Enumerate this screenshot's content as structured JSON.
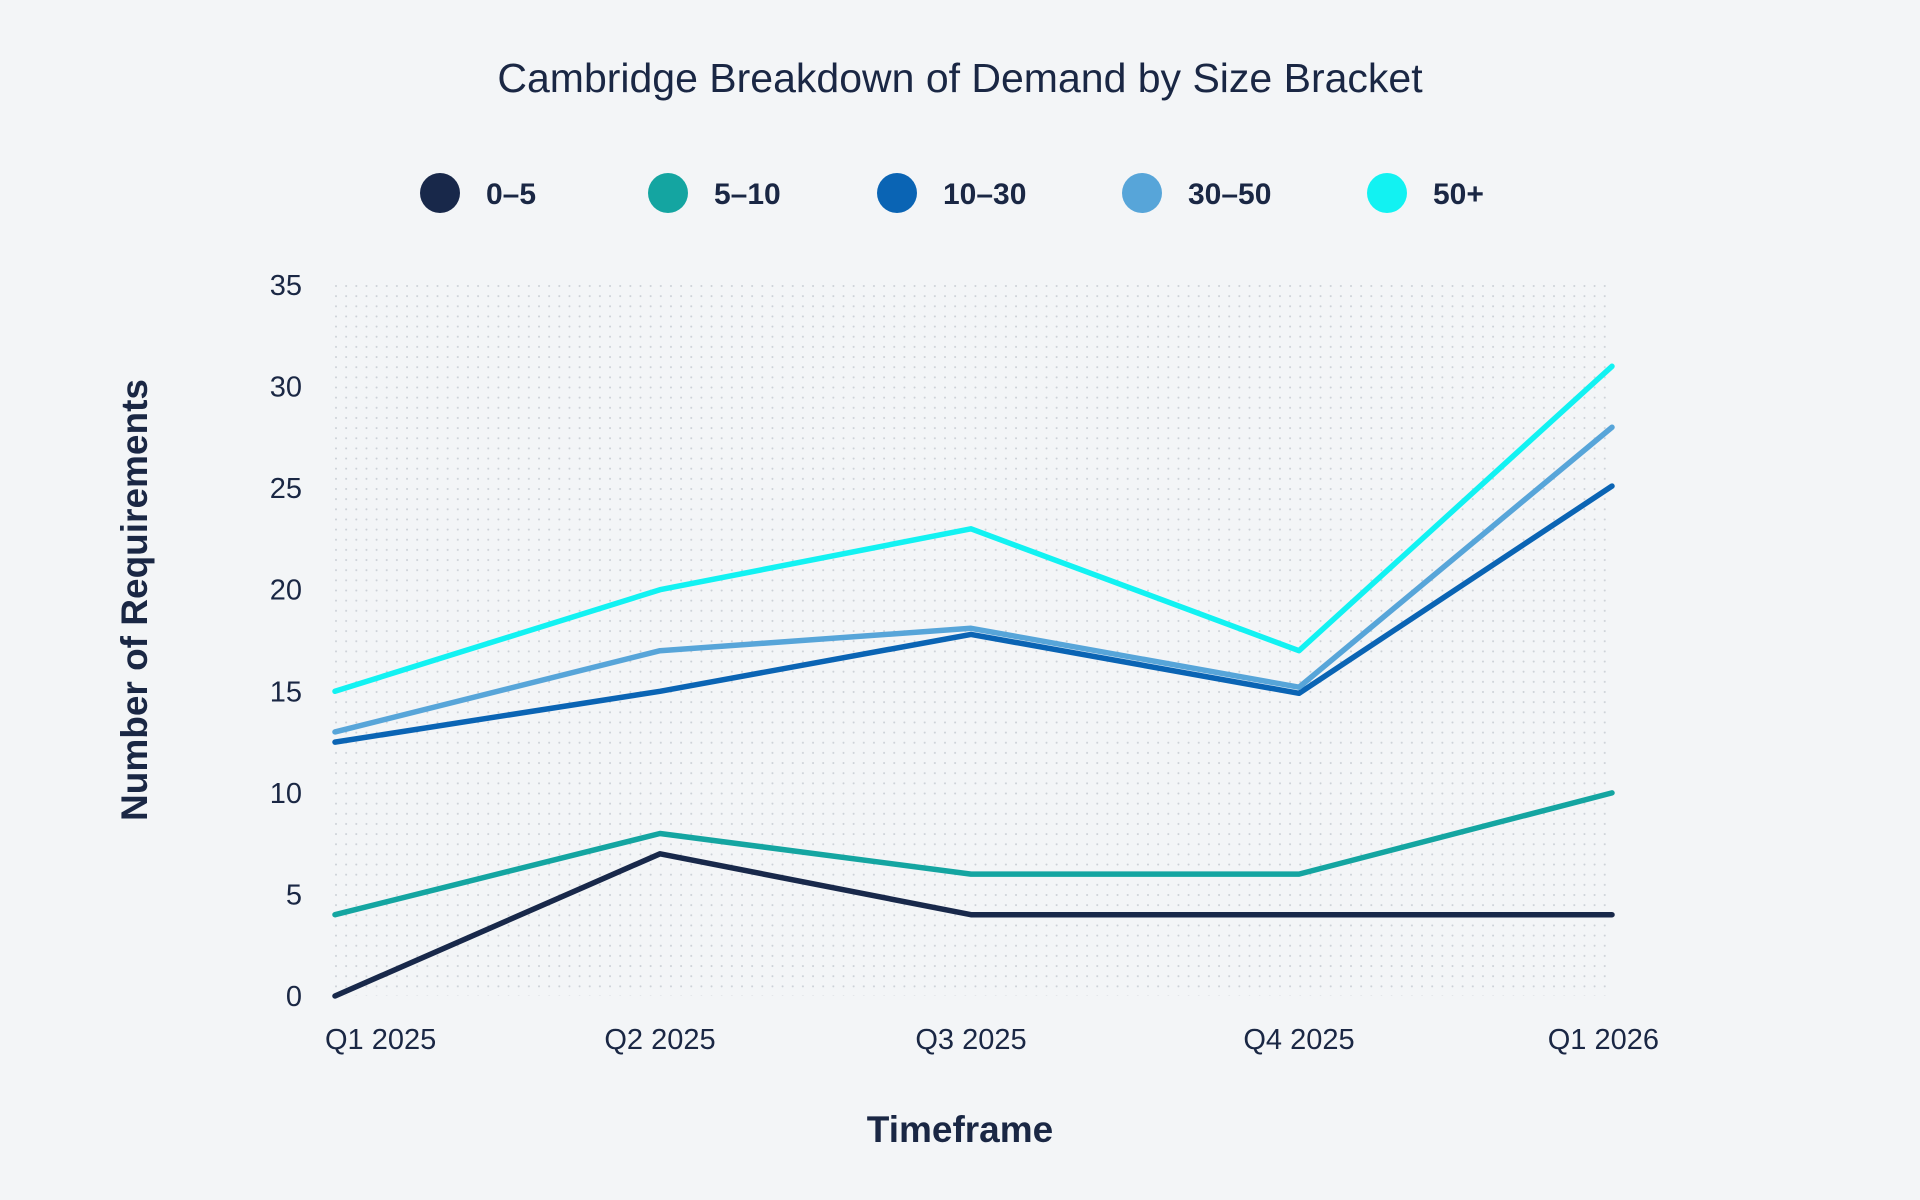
{
  "chart_data": {
    "type": "line",
    "title": "Cambridge Breakdown of Demand by Size Bracket",
    "xlabel": "Timeframe",
    "ylabel": "Number of Requirements",
    "categories": [
      "Q1 2025",
      "Q2 2025",
      "Q3 2025",
      "Q4 2025",
      "Q1 2026"
    ],
    "ylim": [
      0,
      35
    ],
    "yticks": [
      0,
      5,
      10,
      15,
      20,
      25,
      30,
      35
    ],
    "grid": "dotted",
    "legend_position": "top",
    "series": [
      {
        "name": "0–5",
        "color": "#18284a",
        "values": [
          0,
          7,
          4,
          4,
          4
        ]
      },
      {
        "name": "5–10",
        "color": "#14a5a1",
        "values": [
          4,
          8,
          6,
          6,
          10
        ]
      },
      {
        "name": "10–30",
        "color": "#0a64b4",
        "values": [
          12.5,
          15,
          17.8,
          14.9,
          25.1
        ]
      },
      {
        "name": "30–50",
        "color": "#57a5d9",
        "values": [
          13,
          17,
          18.1,
          15.2,
          28
        ]
      },
      {
        "name": "50+",
        "color": "#12f2f2",
        "values": [
          15,
          20,
          23,
          17,
          31
        ]
      }
    ]
  }
}
